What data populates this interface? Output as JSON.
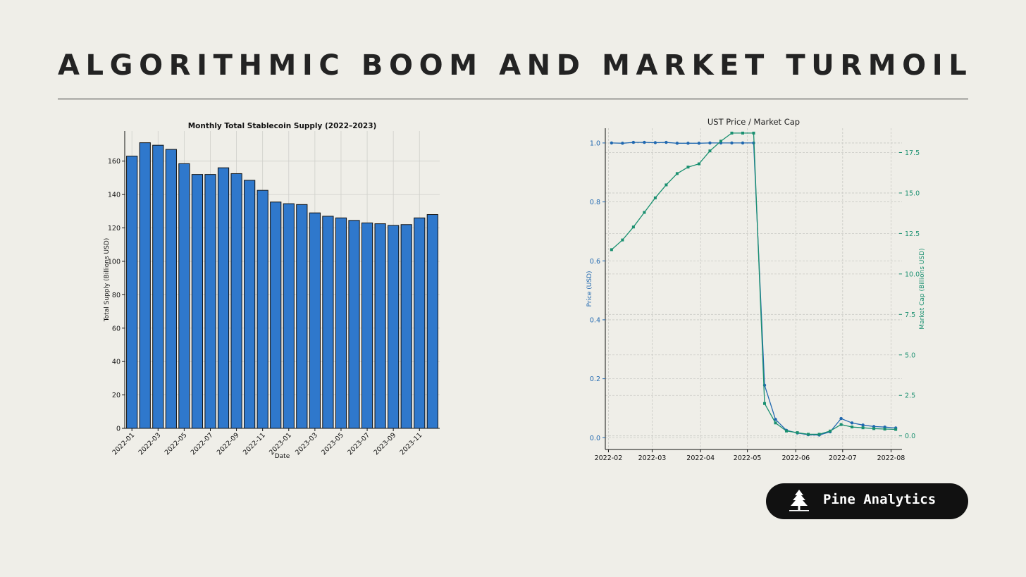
{
  "page": {
    "title": "ALGORITHMIC BOOM AND MARKET TURMOIL"
  },
  "brand": {
    "name": "Pine Analytics",
    "logo_icon": "pine-tree-icon"
  },
  "colors": {
    "background": "#efeee8",
    "bar_fill": "#2f78cc",
    "price_line": "#2068b0",
    "mcap_line": "#1a9070",
    "badge_bg": "#111111"
  },
  "chart_data": [
    {
      "type": "bar",
      "title": "Monthly Total Stablecoin Supply (2022–2023)",
      "xlabel": "Date",
      "ylabel": "Total Supply (Billions USD)",
      "ylim": [
        0,
        178
      ],
      "yticks": [
        0,
        20,
        40,
        60,
        80,
        100,
        120,
        140,
        160
      ],
      "grid": true,
      "categories": [
        "2022-01",
        "2022-02",
        "2022-03",
        "2022-04",
        "2022-05",
        "2022-06",
        "2022-07",
        "2022-08",
        "2022-09",
        "2022-10",
        "2022-11",
        "2022-12",
        "2023-01",
        "2023-02",
        "2023-03",
        "2023-04",
        "2023-05",
        "2023-06",
        "2023-07",
        "2023-08",
        "2023-09",
        "2023-10",
        "2023-11",
        "2023-12"
      ],
      "xtick_labels": [
        "2022-01",
        "2022-03",
        "2022-05",
        "2022-07",
        "2022-09",
        "2022-11",
        "2023-01",
        "2023-03",
        "2023-05",
        "2023-07",
        "2023-09",
        "2023-11"
      ],
      "values": [
        163,
        171,
        169.5,
        167,
        158.5,
        152,
        152,
        156,
        152.5,
        148.5,
        142.5,
        135.5,
        134.5,
        134,
        129,
        127,
        126,
        124.5,
        123,
        122.5,
        121.5,
        122,
        126,
        128
      ]
    },
    {
      "type": "line",
      "title": "UST Price / Market Cap",
      "xlabel": "",
      "ylabel_left": "Price (USD)",
      "ylabel_right": "Market Cap (Billions USD)",
      "xtick_labels": [
        "2022-02",
        "2022-03",
        "2022-04",
        "2022-05",
        "2022-06",
        "2022-07",
        "2022-08"
      ],
      "yticks_left": [
        "0.0",
        "0.2",
        "0.4",
        "0.6",
        "0.8",
        "1.0"
      ],
      "yticks_right": [
        "0.0",
        "2.5",
        "5.0",
        "7.5",
        "10.0",
        "12.5",
        "15.0",
        "17.5"
      ],
      "ylim_left": [
        -0.04,
        1.05
      ],
      "ylim_right": [
        -0.84,
        19.0
      ],
      "grid": true,
      "x": [
        "2022-02-03",
        "2022-02-10",
        "2022-02-17",
        "2022-02-24",
        "2022-03-03",
        "2022-03-10",
        "2022-03-17",
        "2022-03-24",
        "2022-03-31",
        "2022-04-07",
        "2022-04-14",
        "2022-04-21",
        "2022-04-28",
        "2022-05-05",
        "2022-05-12",
        "2022-05-19",
        "2022-05-26",
        "2022-06-02",
        "2022-06-09",
        "2022-06-16",
        "2022-06-23",
        "2022-06-30",
        "2022-07-07",
        "2022-07-14",
        "2022-07-21",
        "2022-07-28",
        "2022-08-04"
      ],
      "series": [
        {
          "name": "Price (USD)",
          "axis": "left",
          "values": [
            1.0,
            0.999,
            1.002,
            1.002,
            1.001,
            1.002,
            0.999,
            0.999,
            0.999,
            1.0,
            1.0,
            1.0,
            1.0,
            1.0,
            0.178,
            0.062,
            0.025,
            0.016,
            0.01,
            0.009,
            0.02,
            0.065,
            0.05,
            0.043,
            0.038,
            0.036,
            0.033
          ]
        },
        {
          "name": "Market Cap (Billions USD)",
          "axis": "right",
          "values": [
            11.5,
            12.1,
            12.9,
            13.8,
            14.7,
            15.5,
            16.2,
            16.6,
            16.8,
            17.6,
            18.2,
            18.7,
            18.7,
            18.7,
            2.0,
            0.8,
            0.3,
            0.2,
            0.1,
            0.1,
            0.3,
            0.7,
            0.55,
            0.5,
            0.45,
            0.42,
            0.4
          ]
        }
      ]
    }
  ]
}
